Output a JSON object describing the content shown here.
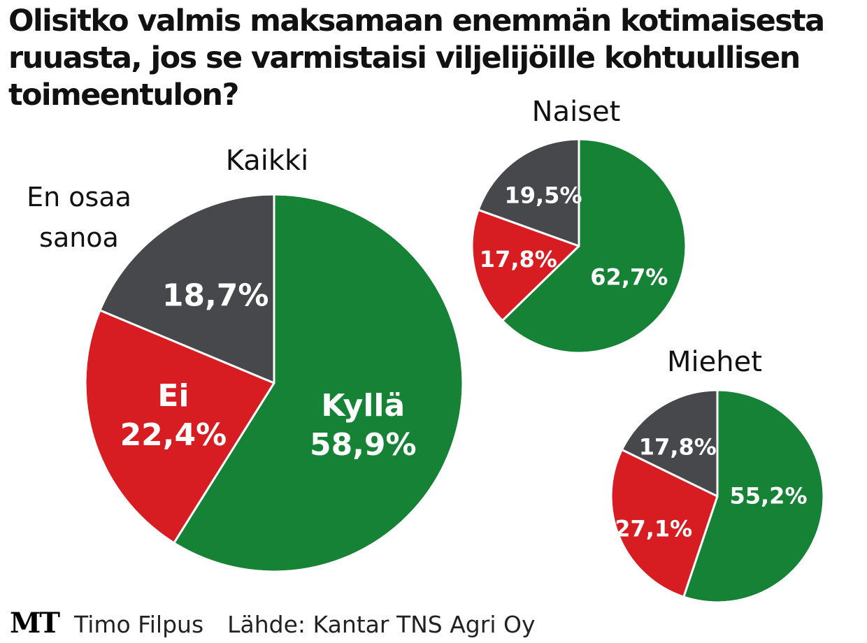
{
  "title": "Olisitko valmis maksamaan enemmän kotimaisesta ruuasta, jos se varmistaisi viljelijöille kohtuullisen toimeentulon?",
  "footer": {
    "logo": "MT",
    "author": "Timo Filpus",
    "source": "Lähde: Kantar TNS Agri Oy"
  },
  "colors": {
    "kylla": "#168236",
    "ei": "#d71d22",
    "eos": "#46484c",
    "edge": "#ffffff"
  },
  "chart_data": [
    {
      "type": "pie",
      "title": "Kaikki",
      "categories": [
        "Kyllä",
        "Ei",
        "En osaa sanoa"
      ],
      "values": [
        58.9,
        22.4,
        18.7
      ],
      "labels": [
        "Kyllä\n58,9%",
        "Ei\n22,4%",
        "18,7%"
      ],
      "outside_label": "En osaa\nsanoa"
    },
    {
      "type": "pie",
      "title": "Naiset",
      "categories": [
        "Kyllä",
        "Ei",
        "En osaa sanoa"
      ],
      "values": [
        62.7,
        17.8,
        19.5
      ],
      "labels": [
        "62,7%",
        "17,8%",
        "19,5%"
      ]
    },
    {
      "type": "pie",
      "title": "Miehet",
      "categories": [
        "Kyllä",
        "Ei",
        "En osaa sanoa"
      ],
      "values": [
        55.2,
        27.1,
        17.8
      ],
      "labels": [
        "55,2%",
        "27,1%",
        "17,8%"
      ]
    }
  ]
}
